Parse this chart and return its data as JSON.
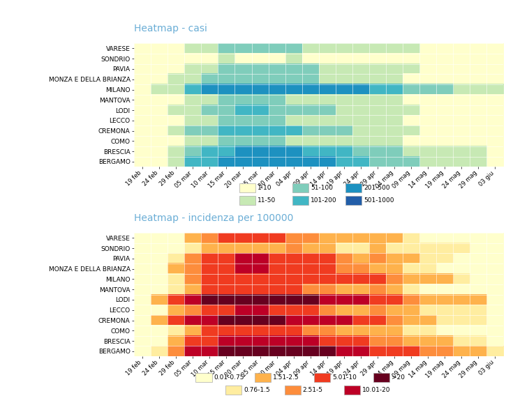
{
  "title1": "Heatmap - casi",
  "title2": "Heatmap - incidenza per 100000",
  "provinces": [
    "VARESE",
    "SONDRIO",
    "PAVIA",
    "MONZA E DELLA BRIANZA",
    "MILANO",
    "MANTOVA",
    "LODI",
    "LECCO",
    "CREMONA",
    "COMO",
    "BRESCIA",
    "BERGAMO"
  ],
  "dates": [
    "19 feb",
    "24 feb",
    "29 feb",
    "05 mar",
    "10 mar",
    "15 mar",
    "20 mar",
    "25 mar",
    "30 mar",
    "04 apr",
    "09 apr",
    "14 apr",
    "19 apr",
    "24 apr",
    "29 apr",
    "04 mag",
    "09 mag",
    "14 mag",
    "19 mag",
    "24 mag",
    "29 mag",
    "03 giu"
  ],
  "casi_data": [
    [
      1,
      1,
      5,
      20,
      40,
      55,
      70,
      65,
      60,
      55,
      45,
      30,
      20,
      30,
      40,
      20,
      12,
      8,
      8,
      5,
      4,
      2
    ],
    [
      1,
      1,
      1,
      4,
      8,
      12,
      8,
      6,
      8,
      15,
      8,
      6,
      4,
      4,
      8,
      4,
      4,
      4,
      4,
      4,
      2,
      1
    ],
    [
      1,
      2,
      8,
      25,
      45,
      70,
      90,
      80,
      70,
      60,
      55,
      45,
      25,
      18,
      25,
      18,
      12,
      8,
      6,
      4,
      4,
      2
    ],
    [
      1,
      2,
      12,
      25,
      55,
      70,
      90,
      80,
      70,
      60,
      55,
      45,
      35,
      25,
      18,
      12,
      8,
      6,
      4,
      4,
      4,
      2
    ],
    [
      5,
      18,
      45,
      130,
      220,
      310,
      380,
      350,
      320,
      280,
      320,
      390,
      280,
      230,
      190,
      140,
      90,
      70,
      55,
      35,
      25,
      12
    ],
    [
      1,
      2,
      8,
      18,
      35,
      55,
      70,
      60,
      55,
      45,
      35,
      25,
      18,
      12,
      22,
      12,
      8,
      4,
      4,
      4,
      4,
      2
    ],
    [
      1,
      4,
      18,
      45,
      70,
      90,
      110,
      100,
      90,
      80,
      70,
      55,
      45,
      35,
      25,
      18,
      12,
      8,
      6,
      4,
      4,
      2
    ],
    [
      1,
      2,
      8,
      18,
      35,
      55,
      70,
      60,
      55,
      45,
      35,
      25,
      18,
      12,
      18,
      12,
      8,
      6,
      4,
      4,
      4,
      2
    ],
    [
      2,
      8,
      25,
      55,
      90,
      120,
      140,
      120,
      110,
      100,
      90,
      70,
      55,
      35,
      25,
      18,
      12,
      8,
      6,
      4,
      4,
      2
    ],
    [
      1,
      2,
      8,
      18,
      35,
      55,
      70,
      60,
      55,
      45,
      35,
      25,
      18,
      12,
      18,
      12,
      8,
      6,
      4,
      4,
      4,
      2
    ],
    [
      2,
      8,
      45,
      90,
      140,
      190,
      270,
      260,
      240,
      230,
      190,
      140,
      110,
      90,
      70,
      55,
      45,
      35,
      25,
      18,
      12,
      6
    ],
    [
      2,
      8,
      45,
      110,
      190,
      320,
      380,
      350,
      320,
      280,
      260,
      230,
      190,
      140,
      90,
      70,
      55,
      45,
      35,
      25,
      18,
      8
    ]
  ],
  "incidenza_data": [
    [
      0.1,
      0.2,
      0.4,
      1.5,
      3.0,
      5.0,
      6.5,
      5.5,
      5.0,
      4.5,
      3.5,
      2.5,
      1.5,
      1.5,
      2.5,
      1.5,
      0.8,
      0.6,
      0.6,
      0.4,
      0.3,
      0.1
    ],
    [
      0.1,
      0.1,
      0.2,
      0.8,
      1.5,
      2.5,
      1.5,
      1.5,
      1.5,
      3.0,
      1.5,
      1.5,
      0.8,
      0.8,
      1.5,
      0.8,
      0.8,
      0.8,
      0.8,
      0.8,
      0.4,
      0.1
    ],
    [
      0.1,
      0.2,
      0.8,
      3.5,
      6.0,
      9.5,
      12.0,
      10.5,
      9.5,
      8.5,
      7.0,
      6.0,
      3.5,
      2.5,
      3.5,
      2.5,
      1.5,
      0.8,
      0.8,
      0.6,
      0.6,
      0.2
    ],
    [
      0.1,
      0.2,
      1.5,
      3.5,
      7.0,
      9.5,
      12.0,
      10.5,
      9.5,
      8.5,
      7.0,
      6.0,
      4.5,
      3.5,
      2.5,
      1.5,
      0.8,
      0.8,
      0.6,
      0.6,
      0.6,
      0.2
    ],
    [
      0.1,
      0.4,
      0.8,
      3.5,
      6.0,
      8.5,
      9.5,
      9.5,
      8.5,
      7.0,
      8.5,
      9.5,
      7.0,
      6.0,
      5.0,
      3.5,
      2.5,
      1.5,
      1.5,
      0.8,
      0.6,
      0.3
    ],
    [
      0.1,
      0.2,
      0.8,
      2.5,
      5.0,
      7.0,
      9.5,
      8.5,
      7.0,
      6.0,
      4.5,
      3.5,
      2.5,
      1.5,
      3.5,
      1.5,
      0.8,
      0.6,
      0.6,
      0.6,
      0.6,
      0.2
    ],
    [
      0.2,
      1.5,
      7.0,
      16.0,
      25.0,
      31.0,
      38.0,
      34.0,
      31.0,
      28.0,
      25.0,
      19.0,
      15.0,
      12.5,
      9.0,
      6.0,
      4.5,
      2.5,
      2.5,
      1.5,
      1.5,
      0.6
    ],
    [
      0.1,
      0.2,
      1.5,
      3.5,
      6.0,
      9.5,
      12.0,
      10.5,
      9.0,
      8.0,
      6.0,
      4.5,
      2.5,
      2.5,
      3.5,
      2.5,
      1.5,
      0.8,
      0.8,
      0.8,
      0.8,
      0.2
    ],
    [
      0.2,
      1.5,
      5.0,
      10.5,
      17.5,
      23.0,
      26.5,
      23.0,
      21.0,
      19.5,
      17.5,
      14.0,
      10.5,
      7.0,
      5.0,
      3.5,
      2.5,
      1.5,
      1.2,
      0.8,
      0.8,
      0.3
    ],
    [
      0.1,
      0.2,
      0.8,
      2.5,
      5.0,
      7.0,
      9.5,
      8.5,
      7.0,
      6.0,
      4.5,
      3.5,
      2.5,
      1.5,
      2.5,
      1.5,
      0.8,
      0.8,
      0.6,
      0.6,
      0.6,
      0.2
    ],
    [
      0.1,
      0.4,
      2.5,
      5.0,
      8.0,
      10.5,
      15.5,
      15.0,
      14.0,
      13.0,
      10.5,
      8.0,
      6.0,
      5.0,
      4.5,
      3.5,
      2.5,
      1.5,
      1.5,
      0.8,
      0.8,
      0.4
    ],
    [
      0.1,
      0.8,
      4.5,
      10.5,
      17.5,
      31.0,
      36.0,
      34.0,
      31.0,
      26.5,
      24.5,
      22.5,
      17.5,
      13.0,
      9.0,
      7.0,
      5.0,
      4.5,
      3.5,
      2.5,
      1.5,
      0.8
    ]
  ],
  "casi_colors": [
    "#ffffcc",
    "#c7e9b4",
    "#7fcdbb",
    "#41b6c4",
    "#1d91c0",
    "#225ea8"
  ],
  "casi_boundaries": [
    0,
    10,
    50,
    100,
    200,
    500,
    1000
  ],
  "casi_legend_row1": [
    {
      "label": "1-10",
      "color": "#ffffcc"
    },
    {
      "label": "51-100",
      "color": "#7fcdbb"
    },
    {
      "label": "201-500",
      "color": "#1d91c0"
    }
  ],
  "casi_legend_row2": [
    {
      "label": "11-50",
      "color": "#c7e9b4"
    },
    {
      "label": "101-200",
      "color": "#41b6c4"
    },
    {
      "label": "501-1000",
      "color": "#225ea8"
    }
  ],
  "inc_colors": [
    "#ffffcc",
    "#ffeda0",
    "#feb24c",
    "#fd8d3c",
    "#f03b20",
    "#bd0026",
    "#67001f"
  ],
  "inc_boundaries": [
    0,
    0.75,
    1.5,
    2.5,
    5.0,
    10.0,
    20.0,
    100.0
  ],
  "inc_legend_row1": [
    {
      "label": "0.01-0.75",
      "color": "#ffffcc"
    },
    {
      "label": "1.51-2.5",
      "color": "#feb24c"
    },
    {
      "label": "5.01-10",
      "color": "#f03b20"
    },
    {
      "label": ">20",
      "color": "#67001f"
    }
  ],
  "inc_legend_row2": [
    {
      "label": "0.76-1.5",
      "color": "#ffeda0"
    },
    {
      "label": "2.51-5",
      "color": "#fd8d3c"
    },
    {
      "label": "10.01-20",
      "color": "#bd0026"
    }
  ],
  "title_color": "#6baed6",
  "title_fontsize": 10,
  "tick_fontsize": 6,
  "ylabel_fontsize": 6.5,
  "legend_fontsize": 6.5
}
